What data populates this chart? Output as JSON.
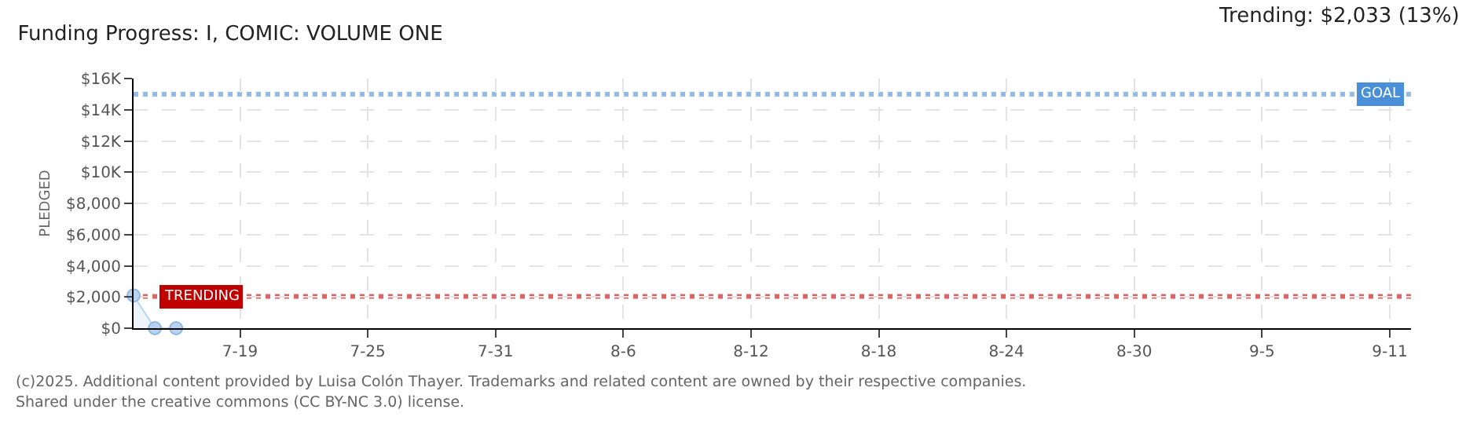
{
  "chart_data": {
    "type": "area",
    "title": "Funding Progress: I, COMIC: VOLUME ONE",
    "subtitle": "Trending: $2,033 (13%)",
    "ylabel": "PLEDGED",
    "x": [
      "--07-14",
      "--07-15",
      "--07-16"
    ],
    "series": [
      {
        "color": "#b8d4f0",
        "values": [
          2100,
          0,
          0
        ]
      }
    ],
    "marker": "circle",
    "xlim": [
      "--07-14",
      "--09-12"
    ],
    "xticks": [
      {
        "value": "--07-19",
        "label": "7-19"
      },
      {
        "value": "--07-25",
        "label": "7-25"
      },
      {
        "value": "--07-31",
        "label": "7-31"
      },
      {
        "value": "--08-06",
        "label": "8-6"
      },
      {
        "value": "--08-12",
        "label": "8-12"
      },
      {
        "value": "--08-18",
        "label": "8-18"
      },
      {
        "value": "--08-24",
        "label": "8-24"
      },
      {
        "value": "--08-30",
        "label": "8-30"
      },
      {
        "value": "--09-05",
        "label": "9-5"
      },
      {
        "value": "--09-11",
        "label": "9-11"
      }
    ],
    "ylim": [
      0,
      16000
    ],
    "yticks": [
      {
        "value": 0,
        "label": "$0"
      },
      {
        "value": 2000,
        "label": "$2,000"
      },
      {
        "value": 4000,
        "label": "$4,000"
      },
      {
        "value": 6000,
        "label": "$6,000"
      },
      {
        "value": 8000,
        "label": "$8,000"
      },
      {
        "value": 10000,
        "label": "$10K"
      },
      {
        "value": 12000,
        "label": "$12K"
      },
      {
        "value": 14000,
        "label": "$14K"
      },
      {
        "value": 16000,
        "label": "$16K"
      }
    ],
    "ref_lines": [
      {
        "axis": "y",
        "value": 15000,
        "label": "GOAL",
        "color": "#4a90d9",
        "line_style": "dotted"
      },
      {
        "axis": "y",
        "value": 2033,
        "label": "TRENDING",
        "color": "#c00000",
        "line_style": "dotted"
      }
    ],
    "grid": true,
    "annotations": [
      "(c)2025. Additional content provided by Luisa Colón Thayer. Trademarks and related content are owned by their respective companies.",
      "Shared under the creative commons (CC BY-NC 3.0) license."
    ]
  }
}
